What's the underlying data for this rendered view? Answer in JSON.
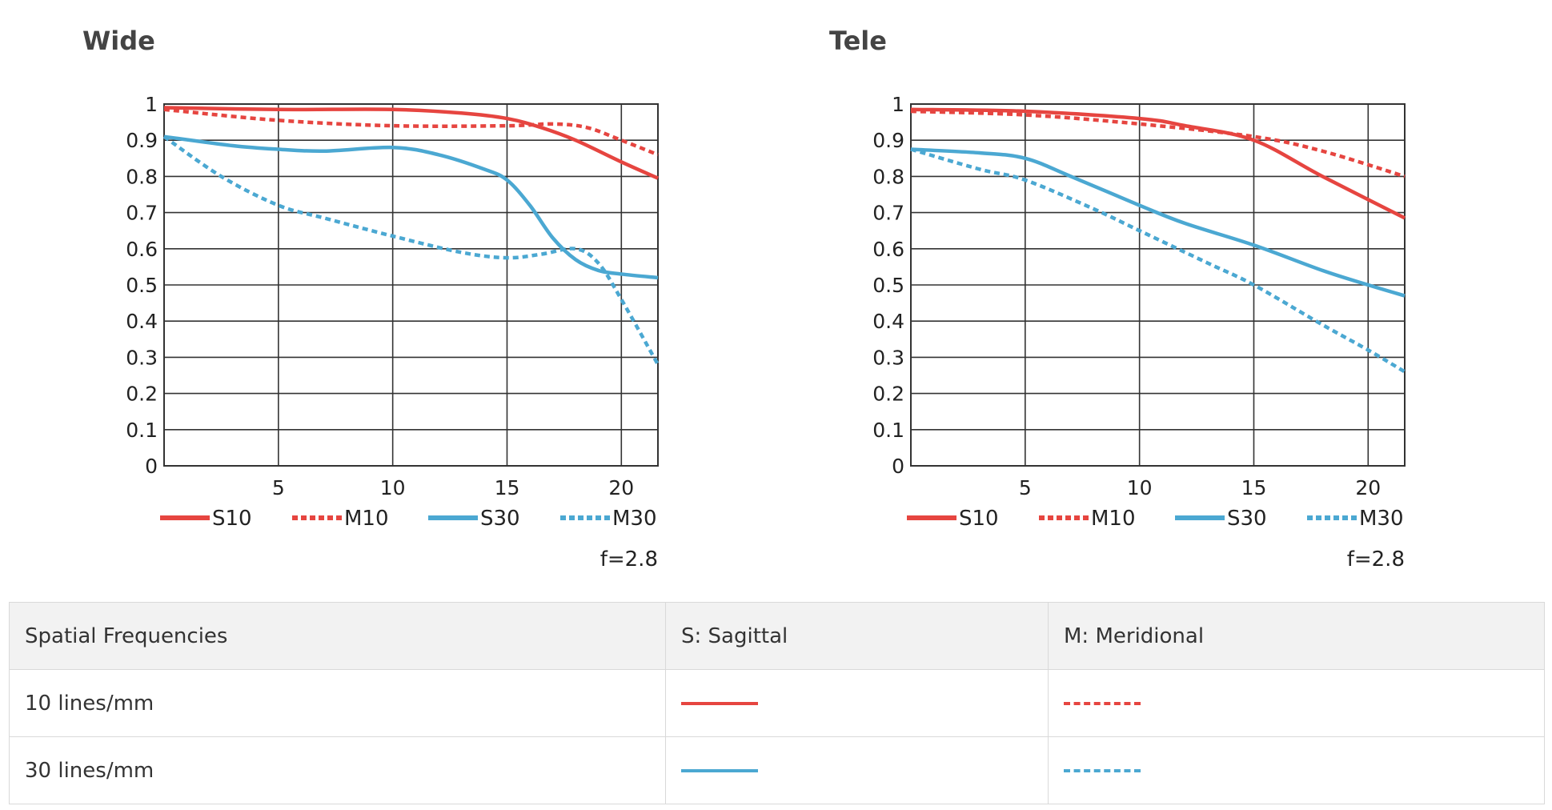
{
  "colors": {
    "sagittal_10": "#e64540",
    "meridional_10": "#e64540",
    "sagittal_30": "#4ba8d2",
    "meridional_30": "#4ba8d2",
    "grid": "#333333"
  },
  "chart_data": [
    {
      "type": "line",
      "title": "Wide",
      "xticks": [
        5,
        10,
        15,
        20
      ],
      "yticks": [
        "0",
        "0.1",
        "0.2",
        "0.3",
        "0.4",
        "0.5",
        "0.6",
        "0.7",
        "0.8",
        "0.9",
        "1"
      ],
      "xlim": [
        0,
        21.6
      ],
      "ylim": [
        0,
        1
      ],
      "grid": true,
      "note": "f=2.8",
      "legend": [
        "S10",
        "M10",
        "S30",
        "M30"
      ],
      "series": [
        {
          "name": "S10",
          "style": "solid",
          "color": "#e64540",
          "x": [
            0,
            5,
            10,
            13,
            15,
            16.5,
            18,
            20,
            21.6
          ],
          "y": [
            0.99,
            0.985,
            0.985,
            0.975,
            0.96,
            0.935,
            0.9,
            0.84,
            0.795
          ]
        },
        {
          "name": "M10",
          "style": "dashed",
          "color": "#e64540",
          "x": [
            0,
            5,
            10,
            15,
            17,
            18.5,
            20,
            21.6
          ],
          "y": [
            0.985,
            0.955,
            0.94,
            0.94,
            0.945,
            0.935,
            0.9,
            0.86
          ]
        },
        {
          "name": "S30",
          "style": "solid",
          "color": "#4ba8d2",
          "x": [
            0,
            3,
            5,
            7,
            10,
            12,
            14,
            15,
            16,
            17,
            18,
            19,
            20,
            21.6
          ],
          "y": [
            0.91,
            0.885,
            0.875,
            0.87,
            0.88,
            0.86,
            0.82,
            0.79,
            0.72,
            0.63,
            0.57,
            0.54,
            0.53,
            0.52
          ]
        },
        {
          "name": "M30",
          "style": "dashed",
          "color": "#4ba8d2",
          "x": [
            0,
            2.5,
            5,
            7,
            10,
            13,
            15,
            16.5,
            18,
            19,
            20,
            21.6
          ],
          "y": [
            0.91,
            0.8,
            0.72,
            0.685,
            0.635,
            0.59,
            0.575,
            0.585,
            0.6,
            0.56,
            0.46,
            0.28
          ]
        }
      ]
    },
    {
      "type": "line",
      "title": "Tele",
      "xticks": [
        5,
        10,
        15,
        20
      ],
      "yticks": [
        "0",
        "0.1",
        "0.2",
        "0.3",
        "0.4",
        "0.5",
        "0.6",
        "0.7",
        "0.8",
        "0.9",
        "1"
      ],
      "xlim": [
        0,
        21.6
      ],
      "ylim": [
        0,
        1
      ],
      "grid": true,
      "note": "f=2.8",
      "legend": [
        "S10",
        "M10",
        "S30",
        "M30"
      ],
      "series": [
        {
          "name": "S10",
          "style": "solid",
          "color": "#e64540",
          "x": [
            0,
            5,
            10,
            12,
            15,
            18,
            21.6
          ],
          "y": [
            0.985,
            0.98,
            0.96,
            0.94,
            0.9,
            0.8,
            0.685
          ]
        },
        {
          "name": "M10",
          "style": "dashed",
          "color": "#e64540",
          "x": [
            0,
            5,
            10,
            15,
            18,
            21.6
          ],
          "y": [
            0.98,
            0.97,
            0.945,
            0.91,
            0.87,
            0.8
          ]
        },
        {
          "name": "S30",
          "style": "solid",
          "color": "#4ba8d2",
          "x": [
            0,
            3,
            5,
            7,
            10,
            12,
            15,
            18,
            20,
            21.6
          ],
          "y": [
            0.875,
            0.865,
            0.85,
            0.8,
            0.72,
            0.67,
            0.61,
            0.54,
            0.5,
            0.47
          ]
        },
        {
          "name": "M30",
          "style": "dashed",
          "color": "#4ba8d2",
          "x": [
            0,
            3,
            5,
            8,
            10,
            13,
            15,
            18,
            20,
            21.6
          ],
          "y": [
            0.875,
            0.82,
            0.79,
            0.71,
            0.65,
            0.56,
            0.5,
            0.39,
            0.32,
            0.26
          ]
        }
      ]
    }
  ],
  "table": {
    "headers": [
      "Spatial Frequencies",
      "S: Sagittal",
      "M: Meridional"
    ],
    "rows": [
      {
        "label": "10 lines/mm",
        "sagittal": "solid-red",
        "meridional": "dashed-red"
      },
      {
        "label": "30 lines/mm",
        "sagittal": "solid-blue",
        "meridional": "dashed-blue"
      }
    ]
  }
}
